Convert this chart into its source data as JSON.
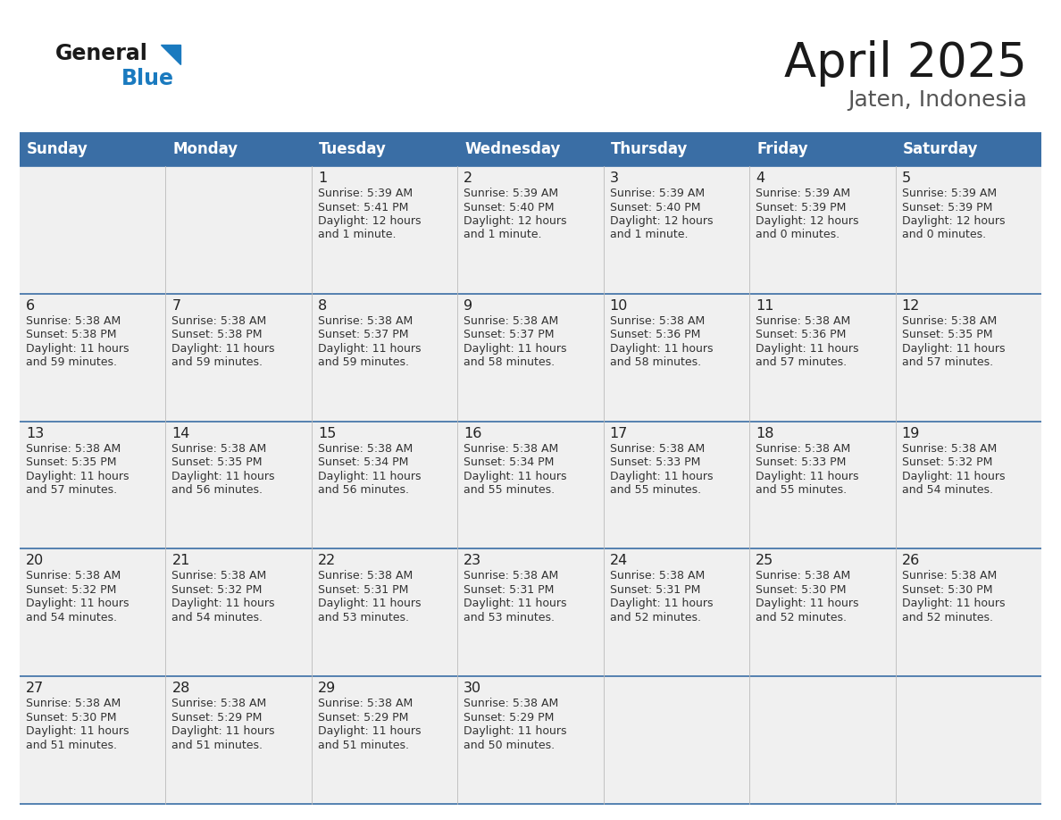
{
  "title": "April 2025",
  "subtitle": "Jaten, Indonesia",
  "header_color": "#3a6ea5",
  "header_text_color": "#ffffff",
  "cell_bg_color": "#f0f0f0",
  "day_names": [
    "Sunday",
    "Monday",
    "Tuesday",
    "Wednesday",
    "Thursday",
    "Friday",
    "Saturday"
  ],
  "text_color": "#333333",
  "line_color": "#3a6ea5",
  "days": [
    {
      "day": 1,
      "col": 2,
      "row": 0,
      "sunrise": "5:39 AM",
      "sunset": "5:41 PM",
      "daylight_h": "12 hours",
      "daylight_m": "and 1 minute."
    },
    {
      "day": 2,
      "col": 3,
      "row": 0,
      "sunrise": "5:39 AM",
      "sunset": "5:40 PM",
      "daylight_h": "12 hours",
      "daylight_m": "and 1 minute."
    },
    {
      "day": 3,
      "col": 4,
      "row": 0,
      "sunrise": "5:39 AM",
      "sunset": "5:40 PM",
      "daylight_h": "12 hours",
      "daylight_m": "and 1 minute."
    },
    {
      "day": 4,
      "col": 5,
      "row": 0,
      "sunrise": "5:39 AM",
      "sunset": "5:39 PM",
      "daylight_h": "12 hours",
      "daylight_m": "and 0 minutes."
    },
    {
      "day": 5,
      "col": 6,
      "row": 0,
      "sunrise": "5:39 AM",
      "sunset": "5:39 PM",
      "daylight_h": "12 hours",
      "daylight_m": "and 0 minutes."
    },
    {
      "day": 6,
      "col": 0,
      "row": 1,
      "sunrise": "5:38 AM",
      "sunset": "5:38 PM",
      "daylight_h": "11 hours",
      "daylight_m": "and 59 minutes."
    },
    {
      "day": 7,
      "col": 1,
      "row": 1,
      "sunrise": "5:38 AM",
      "sunset": "5:38 PM",
      "daylight_h": "11 hours",
      "daylight_m": "and 59 minutes."
    },
    {
      "day": 8,
      "col": 2,
      "row": 1,
      "sunrise": "5:38 AM",
      "sunset": "5:37 PM",
      "daylight_h": "11 hours",
      "daylight_m": "and 59 minutes."
    },
    {
      "day": 9,
      "col": 3,
      "row": 1,
      "sunrise": "5:38 AM",
      "sunset": "5:37 PM",
      "daylight_h": "11 hours",
      "daylight_m": "and 58 minutes."
    },
    {
      "day": 10,
      "col": 4,
      "row": 1,
      "sunrise": "5:38 AM",
      "sunset": "5:36 PM",
      "daylight_h": "11 hours",
      "daylight_m": "and 58 minutes."
    },
    {
      "day": 11,
      "col": 5,
      "row": 1,
      "sunrise": "5:38 AM",
      "sunset": "5:36 PM",
      "daylight_h": "11 hours",
      "daylight_m": "and 57 minutes."
    },
    {
      "day": 12,
      "col": 6,
      "row": 1,
      "sunrise": "5:38 AM",
      "sunset": "5:35 PM",
      "daylight_h": "11 hours",
      "daylight_m": "and 57 minutes."
    },
    {
      "day": 13,
      "col": 0,
      "row": 2,
      "sunrise": "5:38 AM",
      "sunset": "5:35 PM",
      "daylight_h": "11 hours",
      "daylight_m": "and 57 minutes."
    },
    {
      "day": 14,
      "col": 1,
      "row": 2,
      "sunrise": "5:38 AM",
      "sunset": "5:35 PM",
      "daylight_h": "11 hours",
      "daylight_m": "and 56 minutes."
    },
    {
      "day": 15,
      "col": 2,
      "row": 2,
      "sunrise": "5:38 AM",
      "sunset": "5:34 PM",
      "daylight_h": "11 hours",
      "daylight_m": "and 56 minutes."
    },
    {
      "day": 16,
      "col": 3,
      "row": 2,
      "sunrise": "5:38 AM",
      "sunset": "5:34 PM",
      "daylight_h": "11 hours",
      "daylight_m": "and 55 minutes."
    },
    {
      "day": 17,
      "col": 4,
      "row": 2,
      "sunrise": "5:38 AM",
      "sunset": "5:33 PM",
      "daylight_h": "11 hours",
      "daylight_m": "and 55 minutes."
    },
    {
      "day": 18,
      "col": 5,
      "row": 2,
      "sunrise": "5:38 AM",
      "sunset": "5:33 PM",
      "daylight_h": "11 hours",
      "daylight_m": "and 55 minutes."
    },
    {
      "day": 19,
      "col": 6,
      "row": 2,
      "sunrise": "5:38 AM",
      "sunset": "5:32 PM",
      "daylight_h": "11 hours",
      "daylight_m": "and 54 minutes."
    },
    {
      "day": 20,
      "col": 0,
      "row": 3,
      "sunrise": "5:38 AM",
      "sunset": "5:32 PM",
      "daylight_h": "11 hours",
      "daylight_m": "and 54 minutes."
    },
    {
      "day": 21,
      "col": 1,
      "row": 3,
      "sunrise": "5:38 AM",
      "sunset": "5:32 PM",
      "daylight_h": "11 hours",
      "daylight_m": "and 54 minutes."
    },
    {
      "day": 22,
      "col": 2,
      "row": 3,
      "sunrise": "5:38 AM",
      "sunset": "5:31 PM",
      "daylight_h": "11 hours",
      "daylight_m": "and 53 minutes."
    },
    {
      "day": 23,
      "col": 3,
      "row": 3,
      "sunrise": "5:38 AM",
      "sunset": "5:31 PM",
      "daylight_h": "11 hours",
      "daylight_m": "and 53 minutes."
    },
    {
      "day": 24,
      "col": 4,
      "row": 3,
      "sunrise": "5:38 AM",
      "sunset": "5:31 PM",
      "daylight_h": "11 hours",
      "daylight_m": "and 52 minutes."
    },
    {
      "day": 25,
      "col": 5,
      "row": 3,
      "sunrise": "5:38 AM",
      "sunset": "5:30 PM",
      "daylight_h": "11 hours",
      "daylight_m": "and 52 minutes."
    },
    {
      "day": 26,
      "col": 6,
      "row": 3,
      "sunrise": "5:38 AM",
      "sunset": "5:30 PM",
      "daylight_h": "11 hours",
      "daylight_m": "and 52 minutes."
    },
    {
      "day": 27,
      "col": 0,
      "row": 4,
      "sunrise": "5:38 AM",
      "sunset": "5:30 PM",
      "daylight_h": "11 hours",
      "daylight_m": "and 51 minutes."
    },
    {
      "day": 28,
      "col": 1,
      "row": 4,
      "sunrise": "5:38 AM",
      "sunset": "5:29 PM",
      "daylight_h": "11 hours",
      "daylight_m": "and 51 minutes."
    },
    {
      "day": 29,
      "col": 2,
      "row": 4,
      "sunrise": "5:38 AM",
      "sunset": "5:29 PM",
      "daylight_h": "11 hours",
      "daylight_m": "and 51 minutes."
    },
    {
      "day": 30,
      "col": 3,
      "row": 4,
      "sunrise": "5:38 AM",
      "sunset": "5:29 PM",
      "daylight_h": "11 hours",
      "daylight_m": "and 50 minutes."
    }
  ]
}
